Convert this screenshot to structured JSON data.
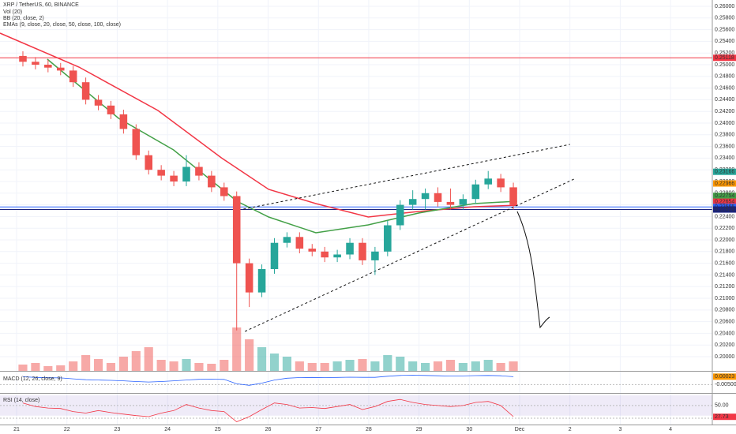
{
  "chart_data": {
    "type": "candlestick",
    "title": "XRP / TetherUS, 60, BINANCE",
    "indicator_labels": [
      "Vol (20)",
      "BB (20, close, 2)",
      "EMAs (9, close, 20, close, 50, close, 100, close)"
    ],
    "xlim": [
      -0.33,
      13.83
    ],
    "xticks": [
      {
        "value": 0,
        "label": "21"
      },
      {
        "value": 1,
        "label": "22"
      },
      {
        "value": 2,
        "label": "23"
      },
      {
        "value": 3,
        "label": "24"
      },
      {
        "value": 4,
        "label": "25"
      },
      {
        "value": 5,
        "label": "26"
      },
      {
        "value": 6,
        "label": "27"
      },
      {
        "value": 7,
        "label": "28"
      },
      {
        "value": 8,
        "label": "29"
      },
      {
        "value": 9,
        "label": "30"
      },
      {
        "value": 10,
        "label": "Dec"
      },
      {
        "value": 11,
        "label": "2"
      },
      {
        "value": 12,
        "label": "3"
      },
      {
        "value": 13,
        "label": "4"
      }
    ],
    "ylim": [
      0.19757,
      0.26108
    ],
    "yticks": [
      {
        "value": 0.26,
        "label": "0.26000"
      },
      {
        "value": 0.258,
        "label": "0.25800"
      },
      {
        "value": 0.256,
        "label": "0.25600"
      },
      {
        "value": 0.254,
        "label": "0.25400"
      },
      {
        "value": 0.252,
        "label": "0.25200"
      },
      {
        "value": 0.25,
        "label": "0.25000"
      },
      {
        "value": 0.248,
        "label": "0.24800"
      },
      {
        "value": 0.246,
        "label": "0.24600"
      },
      {
        "value": 0.244,
        "label": "0.24400"
      },
      {
        "value": 0.242,
        "label": "0.24200"
      },
      {
        "value": 0.24,
        "label": "0.24000"
      },
      {
        "value": 0.238,
        "label": "0.23800"
      },
      {
        "value": 0.236,
        "label": "0.23600"
      },
      {
        "value": 0.234,
        "label": "0.23400"
      },
      {
        "value": 0.232,
        "label": "0.23200"
      },
      {
        "value": 0.23,
        "label": "0.23000"
      },
      {
        "value": 0.228,
        "label": "0.22800"
      },
      {
        "value": 0.226,
        "label": "0.22600"
      },
      {
        "value": 0.224,
        "label": "0.22400"
      },
      {
        "value": 0.222,
        "label": "0.22200"
      },
      {
        "value": 0.22,
        "label": "0.22000"
      },
      {
        "value": 0.218,
        "label": "0.21800"
      },
      {
        "value": 0.216,
        "label": "0.21600"
      },
      {
        "value": 0.214,
        "label": "0.21400"
      },
      {
        "value": 0.212,
        "label": "0.21200"
      },
      {
        "value": 0.21,
        "label": "0.21000"
      },
      {
        "value": 0.208,
        "label": "0.20800"
      },
      {
        "value": 0.206,
        "label": "0.20600"
      },
      {
        "value": 0.204,
        "label": "0.20400"
      },
      {
        "value": 0.202,
        "label": "0.20200"
      },
      {
        "value": 0.2,
        "label": "0.20000"
      }
    ],
    "grid": true,
    "up_color": "#26a69a",
    "down_color": "#ef5350",
    "x": [
      0,
      0.25,
      0.5,
      0.75,
      1,
      1.25,
      1.5,
      1.75,
      2,
      2.25,
      2.5,
      2.75,
      3,
      3.25,
      3.5,
      3.75,
      4,
      4.25,
      4.5,
      4.75,
      5,
      5.25,
      5.5,
      5.75,
      6,
      6.25,
      6.5,
      6.75,
      7,
      7.25,
      7.5,
      7.75,
      8,
      8.25,
      8.5,
      8.75,
      9,
      9.25,
      9.5,
      9.75
    ],
    "open": [
      0.2515,
      0.2505,
      0.25,
      0.2495,
      0.249,
      0.247,
      0.244,
      0.243,
      0.2415,
      0.239,
      0.2345,
      0.232,
      0.231,
      0.23,
      0.2325,
      0.231,
      0.229,
      0.2275,
      0.216,
      0.211,
      0.215,
      0.2195,
      0.2205,
      0.2185,
      0.218,
      0.217,
      0.2175,
      0.2195,
      0.2165,
      0.218,
      0.2225,
      0.226,
      0.227,
      0.228,
      0.2265,
      0.226,
      0.227,
      0.2295,
      0.2305,
      0.229
    ],
    "high": [
      0.2523,
      0.2513,
      0.2508,
      0.2503,
      0.2498,
      0.2478,
      0.2448,
      0.2438,
      0.2423,
      0.2398,
      0.2353,
      0.2328,
      0.2318,
      0.2345,
      0.2333,
      0.2318,
      0.2298,
      0.2283,
      0.2168,
      0.2158,
      0.2203,
      0.2213,
      0.2213,
      0.2193,
      0.2188,
      0.2183,
      0.2203,
      0.2203,
      0.2188,
      0.2233,
      0.2268,
      0.2285,
      0.2288,
      0.229,
      0.2288,
      0.2278,
      0.2303,
      0.2318,
      0.2313,
      0.2298
    ],
    "low": [
      0.2497,
      0.2492,
      0.2487,
      0.2482,
      0.2462,
      0.2432,
      0.2422,
      0.2407,
      0.2382,
      0.2337,
      0.2312,
      0.2302,
      0.2292,
      0.2292,
      0.2302,
      0.2282,
      0.2267,
      0.2045,
      0.2085,
      0.2102,
      0.2142,
      0.2187,
      0.2177,
      0.2172,
      0.2162,
      0.2162,
      0.2167,
      0.2157,
      0.214,
      0.2172,
      0.2217,
      0.2252,
      0.2252,
      0.2257,
      0.2252,
      0.2252,
      0.2262,
      0.2287,
      0.2282,
      0.2252
    ],
    "close": [
      0.2505,
      0.25,
      0.2495,
      0.249,
      0.247,
      0.244,
      0.243,
      0.2415,
      0.239,
      0.2345,
      0.232,
      0.231,
      0.23,
      0.2325,
      0.231,
      0.229,
      0.2275,
      0.216,
      0.211,
      0.215,
      0.2195,
      0.2205,
      0.2185,
      0.218,
      0.217,
      0.2175,
      0.2195,
      0.2165,
      0.218,
      0.2225,
      0.226,
      0.227,
      0.228,
      0.2265,
      0.226,
      0.227,
      0.2295,
      0.2305,
      0.229,
      0.226
    ],
    "volume": [
      8,
      10,
      6,
      7,
      12,
      20,
      15,
      10,
      18,
      25,
      30,
      14,
      12,
      15,
      10,
      9,
      14,
      55,
      40,
      30,
      22,
      18,
      12,
      10,
      10,
      12,
      14,
      15,
      12,
      20,
      18,
      12,
      10,
      12,
      14,
      10,
      12,
      14,
      10,
      12
    ],
    "volume_ylim": [
      0,
      80
    ],
    "series": [
      {
        "name": "EMA 100",
        "color": "#f23645",
        "x": [
          -0.33,
          1.24,
          2.81,
          4.07,
          5.01,
          5.95,
          6.99,
          7.99,
          9.09,
          9.95
        ],
        "values": [
          0.2554,
          0.24959,
          0.24216,
          0.23405,
          0.22865,
          0.22622,
          0.22392,
          0.22486,
          0.22567,
          0.22594
        ]
      },
      {
        "name": "EMA 50",
        "color": "#43a047",
        "x": [
          0.61,
          2.03,
          3.12,
          4.38,
          5.01,
          5.95,
          6.99,
          7.99,
          9.09,
          9.95
        ],
        "values": [
          0.25094,
          0.24081,
          0.2354,
          0.22662,
          0.22392,
          0.22122,
          0.22257,
          0.22459,
          0.22622,
          0.22662
        ]
      }
    ],
    "horizontal_lines": [
      {
        "value": 0.25118,
        "color": "#f23645"
      },
      {
        "value": 0.22565,
        "color": "#2962ff"
      },
      {
        "value": 0.2252,
        "color": "#1a237e"
      }
    ],
    "trendlines": [
      {
        "x": [
          4.51,
          11.0
        ],
        "values": [
          0.22527,
          0.23635
        ]
      },
      {
        "x": [
          4.54,
          11.08
        ],
        "values": [
          0.20432,
          0.2304
        ]
      }
    ],
    "price_tags": [
      {
        "value": 0.25118,
        "label": "0.25118",
        "color": "#f23645"
      },
      {
        "value": 0.23166,
        "label": "0.23166",
        "color": "#26a69a"
      },
      {
        "value": 0.22966,
        "label": "0.22966",
        "color": "#ff9800"
      },
      {
        "value": 0.22754,
        "label": "0.22754",
        "color": "#43a047"
      },
      {
        "value": 0.22654,
        "label": "0.22654",
        "color": "#f23645"
      },
      {
        "value": 0.22565,
        "label": "0.22565",
        "color": "#2962ff"
      },
      {
        "value": 0.2252,
        "label": "0.22520",
        "color": "#1a237e"
      }
    ],
    "macd": {
      "label": "MACD (12, 26, close, 9)",
      "ylim": [
        -0.01,
        0.003
      ],
      "yticks": [
        {
          "value": -0.005,
          "label": "-0.00500"
        }
      ],
      "values": [
        0.0002,
        -0.0003,
        -0.0005,
        -0.0006,
        -0.0012,
        -0.0018,
        -0.002,
        -0.0022,
        -0.0025,
        -0.003,
        -0.0033,
        -0.003,
        -0.0025,
        -0.002,
        -0.0015,
        -0.0014,
        -0.0016,
        -0.0045,
        -0.0055,
        -0.004,
        -0.002,
        -0.0008,
        -0.0004,
        -0.0003,
        -0.0004,
        -0.0003,
        -0.0001,
        -0.0002,
        -0.0002,
        0.0005,
        0.001,
        0.0012,
        0.001,
        0.0008,
        0.0006,
        0.0007,
        0.0009,
        0.001,
        0.0008,
        0.0002
      ],
      "color": "#2962ff",
      "tag": {
        "value": 0.00023,
        "label": "0.00023",
        "color": "#ff9800"
      }
    },
    "rsi": {
      "label": "RSI (14, close)",
      "ylim": [
        12.5,
        71.6
      ],
      "band": [
        30,
        70
      ],
      "yticks": [
        {
          "value": 50,
          "label": "50.00"
        },
        {
          "value": 25,
          "label": "25.00"
        }
      ],
      "values": [
        55,
        48,
        45,
        44,
        38,
        35,
        40,
        36,
        33,
        30,
        28,
        35,
        40,
        52,
        45,
        40,
        38,
        18,
        28,
        42,
        55,
        52,
        45,
        46,
        44,
        48,
        52,
        42,
        48,
        58,
        62,
        56,
        52,
        50,
        48,
        50,
        56,
        58,
        50,
        28
      ],
      "color": "#f23645",
      "tag": {
        "value": 27.73,
        "label": "27.73",
        "color": "#f23645"
      }
    }
  }
}
